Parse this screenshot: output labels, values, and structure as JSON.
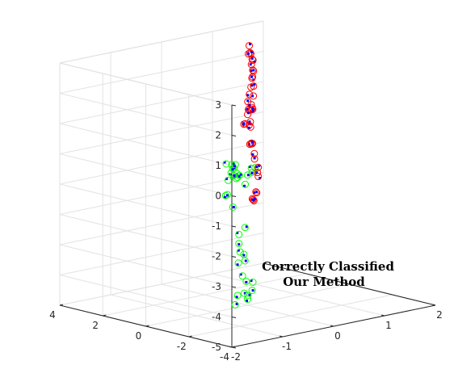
{
  "chart_data": {
    "type": "scatter",
    "projection": "3d",
    "grid": true,
    "box": true,
    "xlim": [
      -2,
      2
    ],
    "ylim": [
      -4,
      4
    ],
    "zlim": [
      -5,
      3
    ],
    "xticks": [
      "-2",
      "-1",
      "0",
      "1",
      "2"
    ],
    "yticks": [
      "-4",
      "-2",
      "0",
      "2",
      "4"
    ],
    "zticks": [
      "-5",
      "-4",
      "-3",
      "-2",
      "-1",
      "0",
      "1",
      "2",
      "3"
    ],
    "annotation": [
      "Correctly Classified",
      "Our Method"
    ],
    "colors": {
      "class_a": "#00ff00",
      "class_b": "#ff0000",
      "predicted": "#0000ff",
      "axis": "#262626",
      "grid": "#e3e3e3"
    },
    "series": [
      {
        "marker": "open-circle",
        "color": "#00ff00",
        "points": [
          [
            -1.2,
            -2.3,
            0.0
          ],
          [
            -1.1,
            -2.1,
            0.1
          ],
          [
            -1.0,
            -1.9,
            -0.1
          ],
          [
            -1.0,
            -1.6,
            0.0
          ],
          [
            -0.9,
            -1.5,
            0.1
          ],
          [
            -1.1,
            -1.7,
            -0.2
          ],
          [
            -0.8,
            -1.2,
            0.0
          ],
          [
            -0.9,
            -1.4,
            0.2
          ],
          [
            -1.0,
            -1.8,
            0.3
          ],
          [
            -0.7,
            -1.0,
            -0.3
          ],
          [
            -0.8,
            -0.9,
            0.1
          ],
          [
            -1.2,
            -1.9,
            -0.6
          ],
          [
            -0.5,
            -0.8,
            -0.4
          ],
          [
            -0.3,
            -0.6,
            -0.8
          ],
          [
            0.0,
            0.0,
            -0.7
          ],
          [
            0.2,
            0.3,
            -0.6
          ],
          [
            0.3,
            0.5,
            -0.8
          ],
          [
            0.4,
            0.6,
            -0.7
          ],
          [
            -0.6,
            -0.4,
            -1.1
          ],
          [
            -0.5,
            -0.5,
            -1.5
          ],
          [
            -1.1,
            -2.2,
            -1.9
          ],
          [
            -1.1,
            -2.2,
            -2.2
          ],
          [
            -0.6,
            -1.3,
            -2.0
          ],
          [
            -0.9,
            -1.7,
            -3.0
          ],
          [
            -0.6,
            -1.3,
            -3.1
          ],
          [
            -0.4,
            -0.6,
            -3.0
          ],
          [
            -0.2,
            -0.3,
            -3.2
          ],
          [
            -1.3,
            -2.5,
            -4.1
          ],
          [
            -1.0,
            -1.9,
            -4.0
          ],
          [
            -0.7,
            -1.5,
            -4.1
          ],
          [
            -0.1,
            0.0,
            -4.0
          ],
          [
            0.1,
            0.3,
            -4.3
          ],
          [
            -0.5,
            -1.2,
            -4.3
          ],
          [
            0.0,
            0.0,
            -4.8
          ],
          [
            0.3,
            0.5,
            -4.7
          ],
          [
            0.4,
            0.7,
            -4.5
          ]
        ]
      },
      {
        "marker": "open-circle",
        "color": "#ff0000",
        "points": [
          [
            1.2,
            2.8,
            2.4
          ],
          [
            1.3,
            3.0,
            2.6
          ],
          [
            1.4,
            3.2,
            2.3
          ],
          [
            1.4,
            3.1,
            2.1
          ],
          [
            1.5,
            3.3,
            2.0
          ],
          [
            1.3,
            2.9,
            2.0
          ],
          [
            1.5,
            3.4,
            2.2
          ],
          [
            1.2,
            2.6,
            1.9
          ],
          [
            1.3,
            2.8,
            1.8
          ],
          [
            1.1,
            2.4,
            1.7
          ],
          [
            0.9,
            1.9,
            1.9
          ],
          [
            0.7,
            1.5,
            1.7
          ],
          [
            0.5,
            1.1,
            1.6
          ],
          [
            0.3,
            0.7,
            1.5
          ],
          [
            0.2,
            0.4,
            1.3
          ],
          [
            0.1,
            0.2,
            1.4
          ],
          [
            0.0,
            0.0,
            1.3
          ],
          [
            -0.3,
            -0.6,
            1.2
          ],
          [
            -0.2,
            -0.3,
            1.1
          ],
          [
            0.6,
            1.2,
            1.1
          ],
          [
            1.0,
            2.1,
            1.2
          ],
          [
            1.3,
            2.8,
            1.3
          ],
          [
            1.0,
            2.2,
            0.9
          ],
          [
            1.2,
            2.6,
            0.6
          ],
          [
            1.3,
            2.9,
            0.5
          ],
          [
            0.9,
            2.0,
            0.4
          ],
          [
            1.0,
            2.3,
            0.2
          ],
          [
            1.2,
            2.7,
            0.0
          ],
          [
            0.9,
            1.9,
            -0.3
          ],
          [
            1.0,
            2.2,
            -0.4
          ],
          [
            1.1,
            2.5,
            -0.5
          ],
          [
            1.3,
            2.9,
            -0.6
          ],
          [
            1.4,
            3.0,
            -1.0
          ],
          [
            1.7,
            3.7,
            -1.4
          ],
          [
            0.6,
            1.2,
            -1.9
          ],
          [
            0.7,
            1.4,
            -2.0
          ],
          [
            0.8,
            1.6,
            -2.1
          ],
          [
            1.6,
            3.4,
            -2.4
          ],
          [
            1.7,
            3.6,
            -2.5
          ],
          [
            1.9,
            4.0,
            -2.1
          ],
          [
            1.8,
            3.8,
            -1.9
          ],
          [
            1.9,
            4.0,
            -1.8
          ]
        ]
      }
    ]
  }
}
